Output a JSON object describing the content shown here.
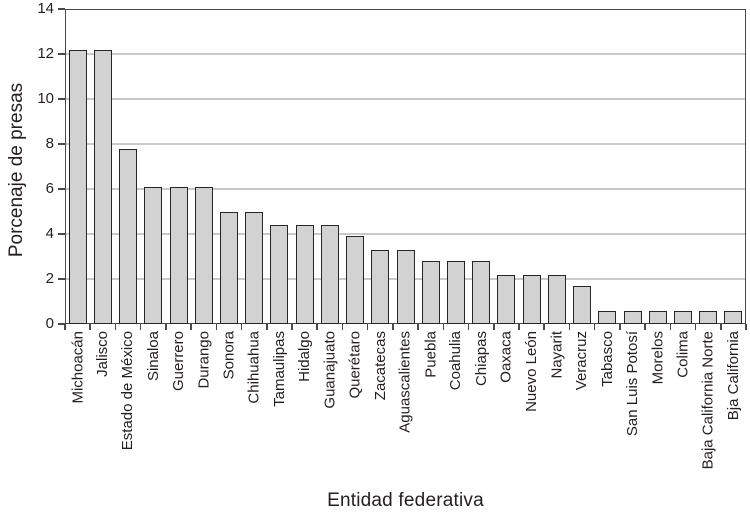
{
  "chart_data": {
    "type": "bar",
    "title": "",
    "xlabel": "Entidad federativa",
    "ylabel": "Porcenaje de presas",
    "categories": [
      "Michoacán",
      "Jalisco",
      "Estado de México",
      "Sinaloa",
      "Guerrero",
      "Durango",
      "Sonora",
      "Chihuahua",
      "Tamaulipas",
      "Hidalgo",
      "Guanajuato",
      "Querétaro",
      "Zacatecas",
      "Aguascalientes",
      "Puebla",
      "Coahulia",
      "Chiapas",
      "Oaxaca",
      "Nuevo León",
      "Nayarit",
      "Veracruz",
      "Tabasco",
      "San Luis Potosí",
      "Morelos",
      "Colima",
      "Baja California Norte",
      "Bja California"
    ],
    "values": [
      12.2,
      12.2,
      7.8,
      6.1,
      6.1,
      6.1,
      5.0,
      5.0,
      4.4,
      4.4,
      4.4,
      3.9,
      3.3,
      3.3,
      2.8,
      2.8,
      2.8,
      2.2,
      2.2,
      2.2,
      1.7,
      0.6,
      0.6,
      0.6,
      0.6,
      0.6,
      0.6
    ],
    "ylim": [
      0,
      14
    ],
    "yticks": [
      0,
      2,
      4,
      6,
      8,
      10,
      12,
      14
    ],
    "grid": "horizontal",
    "legend": "none",
    "colors": {
      "background": "#ffffff",
      "bar_fill": "#d2d2d2",
      "bar_border": "#262626",
      "gridline": "#c9c9c9",
      "axis": "#4a4a4a",
      "text": "#231f20"
    }
  }
}
